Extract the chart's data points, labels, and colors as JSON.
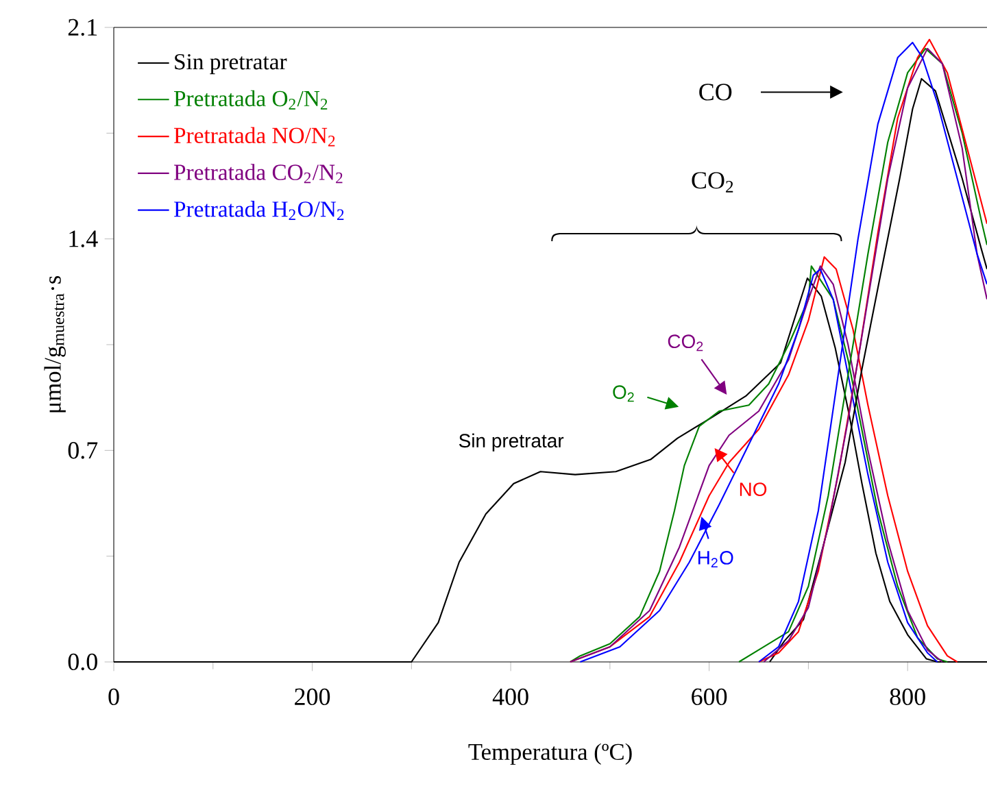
{
  "chart_data": {
    "type": "line",
    "xlabel": "Temperatura (ºC)",
    "ylabel": "μmol/g$_{muestra}$·s",
    "xlim": [
      0,
      880
    ],
    "ylim": [
      0,
      2.1
    ],
    "xticks": [
      0,
      200,
      400,
      600,
      800
    ],
    "yticks": [
      {
        "value": 0,
        "label": "0.0"
      },
      {
        "value": 0.7,
        "label": "0.7"
      },
      {
        "value": 1.4,
        "label": "1.4"
      },
      {
        "value": 2.1,
        "label": "2.1"
      }
    ],
    "grid": false,
    "legend": "top left",
    "series": [
      {
        "name": "Sin pretratar",
        "color": "#000000",
        "x": [
          0,
          300,
          327,
          348,
          375,
          403,
          430,
          465,
          506,
          541,
          568,
          603,
          637,
          672,
          699,
          713,
          727,
          741,
          754,
          768,
          782,
          800,
          819,
          830,
          880
        ],
        "values": [
          0,
          0,
          0.13,
          0.33,
          0.49,
          0.59,
          0.63,
          0.62,
          0.63,
          0.67,
          0.74,
          0.81,
          0.88,
          0.99,
          1.27,
          1.21,
          1.04,
          0.82,
          0.59,
          0.36,
          0.2,
          0.09,
          0.01,
          0,
          0
        ]
      },
      {
        "name": "Pretratada O$_{2}$/N$_{2}$",
        "color": "#008000",
        "x": [
          460,
          470,
          500,
          530,
          550,
          565,
          575,
          590,
          610,
          640,
          660,
          680,
          700,
          703,
          725,
          740,
          755,
          770,
          790,
          810,
          830,
          840
        ],
        "values": [
          0,
          0.02,
          0.06,
          0.15,
          0.3,
          0.5,
          0.65,
          0.78,
          0.83,
          0.85,
          0.92,
          1.05,
          1.2,
          1.31,
          1.2,
          1.0,
          0.75,
          0.5,
          0.25,
          0.08,
          0.01,
          0
        ]
      },
      {
        "name": "Pretratada NO/N$_{2}$",
        "color": "#ff0000",
        "x": [
          460,
          500,
          540,
          570,
          600,
          620,
          650,
          680,
          700,
          716,
          728,
          745,
          760,
          780,
          800,
          820,
          840,
          850
        ],
        "values": [
          0,
          0.05,
          0.15,
          0.33,
          0.55,
          0.66,
          0.77,
          0.95,
          1.13,
          1.34,
          1.3,
          1.1,
          0.85,
          0.55,
          0.3,
          0.12,
          0.02,
          0
        ]
      },
      {
        "name": "Pretratada CO$_{2}$/N$_{2}$",
        "color": "#800080",
        "x": [
          460,
          500,
          540,
          570,
          600,
          620,
          650,
          680,
          700,
          712,
          725,
          740,
          760,
          780,
          800,
          820,
          835
        ],
        "values": [
          0,
          0.05,
          0.17,
          0.38,
          0.65,
          0.75,
          0.83,
          1.0,
          1.2,
          1.31,
          1.25,
          1.05,
          0.7,
          0.4,
          0.17,
          0.04,
          0
        ]
      },
      {
        "name": "Pretratada H$_{2}$O/N$_{2}$",
        "color": "#0000ff",
        "x": [
          470,
          510,
          550,
          580,
          610,
          640,
          670,
          690,
          705,
          712,
          725,
          740,
          760,
          780,
          800,
          820,
          830
        ],
        "values": [
          0,
          0.05,
          0.17,
          0.33,
          0.52,
          0.72,
          0.92,
          1.1,
          1.28,
          1.3,
          1.2,
          0.95,
          0.62,
          0.33,
          0.13,
          0.03,
          0
        ]
      },
      {
        "color": "#000000",
        "x": [
          661,
          676,
          695,
          713,
          737,
          754,
          772,
          792,
          805,
          814,
          828,
          841,
          855,
          874,
          880
        ],
        "values": [
          0,
          0.07,
          0.14,
          0.36,
          0.66,
          0.97,
          1.27,
          1.6,
          1.83,
          1.93,
          1.89,
          1.75,
          1.6,
          1.37,
          1.3
        ]
      },
      {
        "color": "#008000",
        "x": [
          630,
          650,
          680,
          700,
          720,
          740,
          760,
          780,
          800,
          818,
          835,
          855,
          875,
          880
        ],
        "values": [
          0,
          0.04,
          0.1,
          0.25,
          0.55,
          0.95,
          1.35,
          1.72,
          1.95,
          2.03,
          1.98,
          1.75,
          1.45,
          1.38
        ]
      },
      {
        "color": "#ff0000",
        "x": [
          650,
          670,
          690,
          710,
          730,
          750,
          770,
          790,
          810,
          822,
          840,
          860,
          880
        ],
        "values": [
          0,
          0.03,
          0.1,
          0.3,
          0.62,
          1.0,
          1.42,
          1.8,
          2.0,
          2.06,
          1.95,
          1.7,
          1.45
        ]
      },
      {
        "color": "#800080",
        "x": [
          655,
          680,
          700,
          720,
          740,
          760,
          780,
          800,
          820,
          835,
          855,
          870,
          880
        ],
        "values": [
          0,
          0.07,
          0.18,
          0.45,
          0.8,
          1.2,
          1.6,
          1.9,
          2.03,
          1.98,
          1.7,
          1.35,
          1.2
        ]
      },
      {
        "color": "#0000ff",
        "x": [
          650,
          670,
          690,
          710,
          730,
          750,
          770,
          790,
          805,
          815,
          830,
          850,
          870,
          880
        ],
        "values": [
          0,
          0.05,
          0.2,
          0.5,
          0.95,
          1.4,
          1.78,
          2.0,
          2.05,
          2.0,
          1.85,
          1.6,
          1.35,
          1.25
        ]
      }
    ],
    "annotations": [
      "CO",
      "CO$_{2}$",
      "Sin pretratar",
      "O$_{2}$",
      "CO$_{2}$",
      "NO",
      "H$_{2}$O"
    ]
  }
}
